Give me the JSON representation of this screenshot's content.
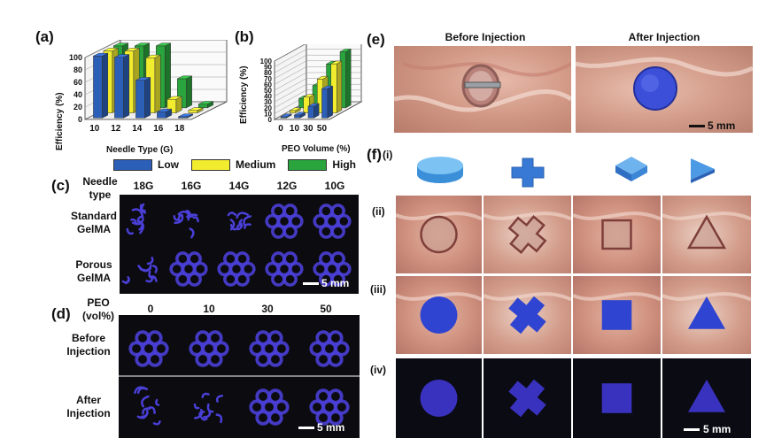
{
  "panel_labels": {
    "a": "(a)",
    "b": "(b)",
    "c": "(c)",
    "d": "(d)",
    "e": "(e)",
    "f": "(f)"
  },
  "chart_data": [
    {
      "type": "bar",
      "panel": "(a)",
      "categories": [
        "10",
        "12",
        "14",
        "16",
        "18"
      ],
      "series": [
        {
          "name": "Low",
          "values": [
            100,
            98,
            61,
            10,
            2
          ]
        },
        {
          "name": "Medium",
          "values": [
            100,
            100,
            89,
            22,
            4
          ]
        },
        {
          "name": "High",
          "values": [
            100,
            100,
            100,
            47,
            6
          ]
        }
      ],
      "xlabel": "Needle Type (G)",
      "ylabel": "Efficiency (%)",
      "yticks": [
        "0",
        "20",
        "40",
        "60",
        "80",
        "100"
      ],
      "ylim": [
        0,
        100
      ]
    },
    {
      "type": "bar",
      "panel": "(b)",
      "categories": [
        "0",
        "10",
        "30",
        "50"
      ],
      "series": [
        {
          "name": "Low",
          "values": [
            2,
            5,
            20,
            50
          ]
        },
        {
          "name": "Medium",
          "values": [
            4,
            27,
            58,
            84
          ]
        },
        {
          "name": "High",
          "values": [
            16,
            38,
            75,
            96
          ]
        }
      ],
      "xlabel": "PEO Volume (%)",
      "ylabel": "Efficiency (%)",
      "yticks": [
        "0",
        "10",
        "20",
        "30",
        "40",
        "50",
        "60",
        "70",
        "80",
        "90",
        "100"
      ],
      "ylim": [
        0,
        100
      ]
    }
  ],
  "legend": [
    {
      "label": "Low",
      "color": "#2c5fb8"
    },
    {
      "label": "Medium",
      "color": "#f2ec2e"
    },
    {
      "label": "High",
      "color": "#2aa43c"
    }
  ],
  "panel_c": {
    "corner_label": "Needle type",
    "columns": [
      "18G",
      "16G",
      "14G",
      "12G",
      "10G"
    ],
    "rows": [
      "Standard GelMA",
      "Porous GelMA"
    ],
    "scale": "5 mm"
  },
  "panel_d": {
    "corner_label": "PEO (vol%)",
    "columns": [
      "0",
      "10",
      "30",
      "50"
    ],
    "rows": [
      "Before Injection",
      "After Injection"
    ],
    "scale": "5 mm"
  },
  "panel_e": {
    "titles": [
      "Before Injection",
      "After Injection"
    ],
    "scale": "5 mm"
  },
  "panel_f": {
    "rows": [
      "(i)",
      "(ii)",
      "(iii)",
      "(iv)"
    ],
    "shapes": [
      "circle",
      "cross",
      "square",
      "triangle"
    ],
    "scale": "5 mm"
  },
  "colors": {
    "gel_blue": "#3b4fd8",
    "gel_glow": "#4a3fd6",
    "tissue": "#d79a8a"
  }
}
